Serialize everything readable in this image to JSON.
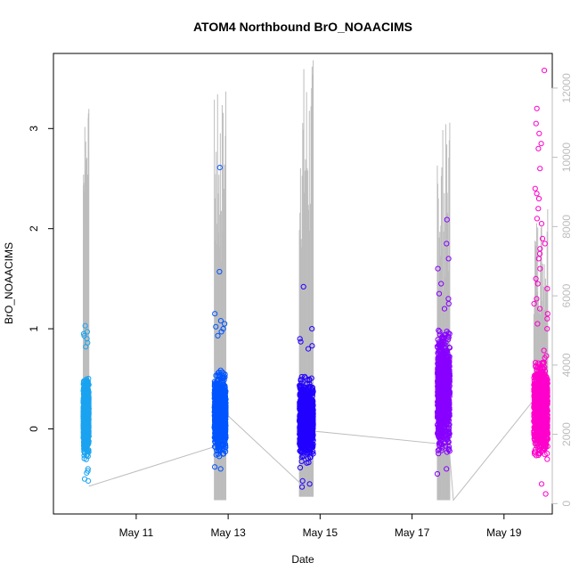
{
  "chart_data": {
    "type": "scatter",
    "title": "ATOM4 Northbound BrO_NOAACIMS",
    "xlabel": "Date",
    "ylabel": "BrO_NOAACIMS",
    "x_ticks": [
      "May 11",
      "May 13",
      "May 15",
      "May 17",
      "May 19"
    ],
    "x_tick_days": [
      11,
      13,
      15,
      17,
      19
    ],
    "xlim_days": [
      9.2,
      20.05
    ],
    "ylim": [
      -0.85,
      3.75
    ],
    "y_ticks": [
      "0",
      "1",
      "2",
      "3"
    ],
    "y_tick_values": [
      0,
      1,
      2,
      3
    ],
    "y2_ticks": [
      "0",
      "2000",
      "4000",
      "6000",
      "8000",
      "10000",
      "12000"
    ],
    "y2_tick_values": [
      0,
      2000,
      4000,
      6000,
      8000,
      10000,
      12000
    ],
    "y2lim": [
      -300,
      13000
    ],
    "grid": false,
    "colors": {
      "series_1": "#1aa3f0",
      "series_2": "#0055ff",
      "series_3": "#2200ff",
      "series_4": "#8800ff",
      "series_5": "#ff00cc",
      "secondary_line": "#bdbdbd"
    },
    "series": [
      {
        "day_start": 9.85,
        "day_end": 9.97,
        "core_min": -0.35,
        "core_max": 0.6,
        "outliers_y": [
          1.03,
          0.97,
          0.95,
          0.93,
          0.9,
          0.86,
          0.82,
          -0.5,
          -0.52,
          -0.44,
          -0.42,
          -0.4
        ]
      },
      {
        "day_start": 12.7,
        "day_end": 12.95,
        "core_min": -0.35,
        "core_max": 0.65,
        "outliers_y": [
          2.61,
          1.57,
          1.15,
          1.08,
          1.05,
          1.02,
          1.0,
          0.97,
          0.93,
          -0.4,
          -0.38
        ]
      },
      {
        "day_start": 14.55,
        "day_end": 14.85,
        "core_min": -0.4,
        "core_max": 0.6,
        "outliers_y": [
          1.42,
          1.0,
          0.9,
          0.87,
          0.83,
          0.8,
          -0.52,
          -0.55,
          -0.58
        ]
      },
      {
        "day_start": 17.55,
        "day_end": 17.82,
        "core_min": -0.35,
        "core_max": 1.1,
        "outliers_y": [
          2.09,
          1.85,
          1.7,
          1.6,
          1.45,
          1.35,
          1.3,
          1.25,
          1.2,
          -0.4,
          -0.45
        ]
      },
      {
        "day_start": 19.65,
        "day_end": 19.95,
        "core_min": -0.4,
        "core_max": 0.8,
        "outliers_y": [
          3.58,
          3.2,
          3.05,
          2.95,
          2.85,
          2.8,
          2.6,
          2.4,
          2.35,
          2.3,
          2.2,
          2.1,
          2.05,
          1.9,
          1.85,
          1.8,
          1.75,
          1.7,
          1.6,
          1.5,
          1.45,
          1.4,
          1.3,
          1.25,
          1.2,
          1.15,
          1.1,
          1.05,
          1.0,
          -0.55,
          -0.65
        ]
      }
    ],
    "secondary_line": {
      "points": [
        [
          9.97,
          500
        ],
        [
          12.72,
          1650
        ],
        [
          12.95,
          2600
        ],
        [
          14.6,
          550
        ],
        [
          14.8,
          2100
        ],
        [
          17.8,
          1700
        ],
        [
          17.9,
          100
        ],
        [
          19.65,
          3000
        ],
        [
          19.9,
          2500
        ]
      ],
      "spike_ranges": [
        {
          "day_start": 9.85,
          "day_end": 9.97,
          "low": 1800,
          "high": 11400
        },
        {
          "day_start": 12.7,
          "day_end": 12.95,
          "low": 100,
          "high": 11900
        },
        {
          "day_start": 14.55,
          "day_end": 14.85,
          "low": 200,
          "high": 12800
        },
        {
          "day_start": 17.55,
          "day_end": 17.82,
          "low": 100,
          "high": 11000
        },
        {
          "day_start": 19.65,
          "day_end": 19.95,
          "low": 1600,
          "high": 8500
        }
      ]
    }
  }
}
